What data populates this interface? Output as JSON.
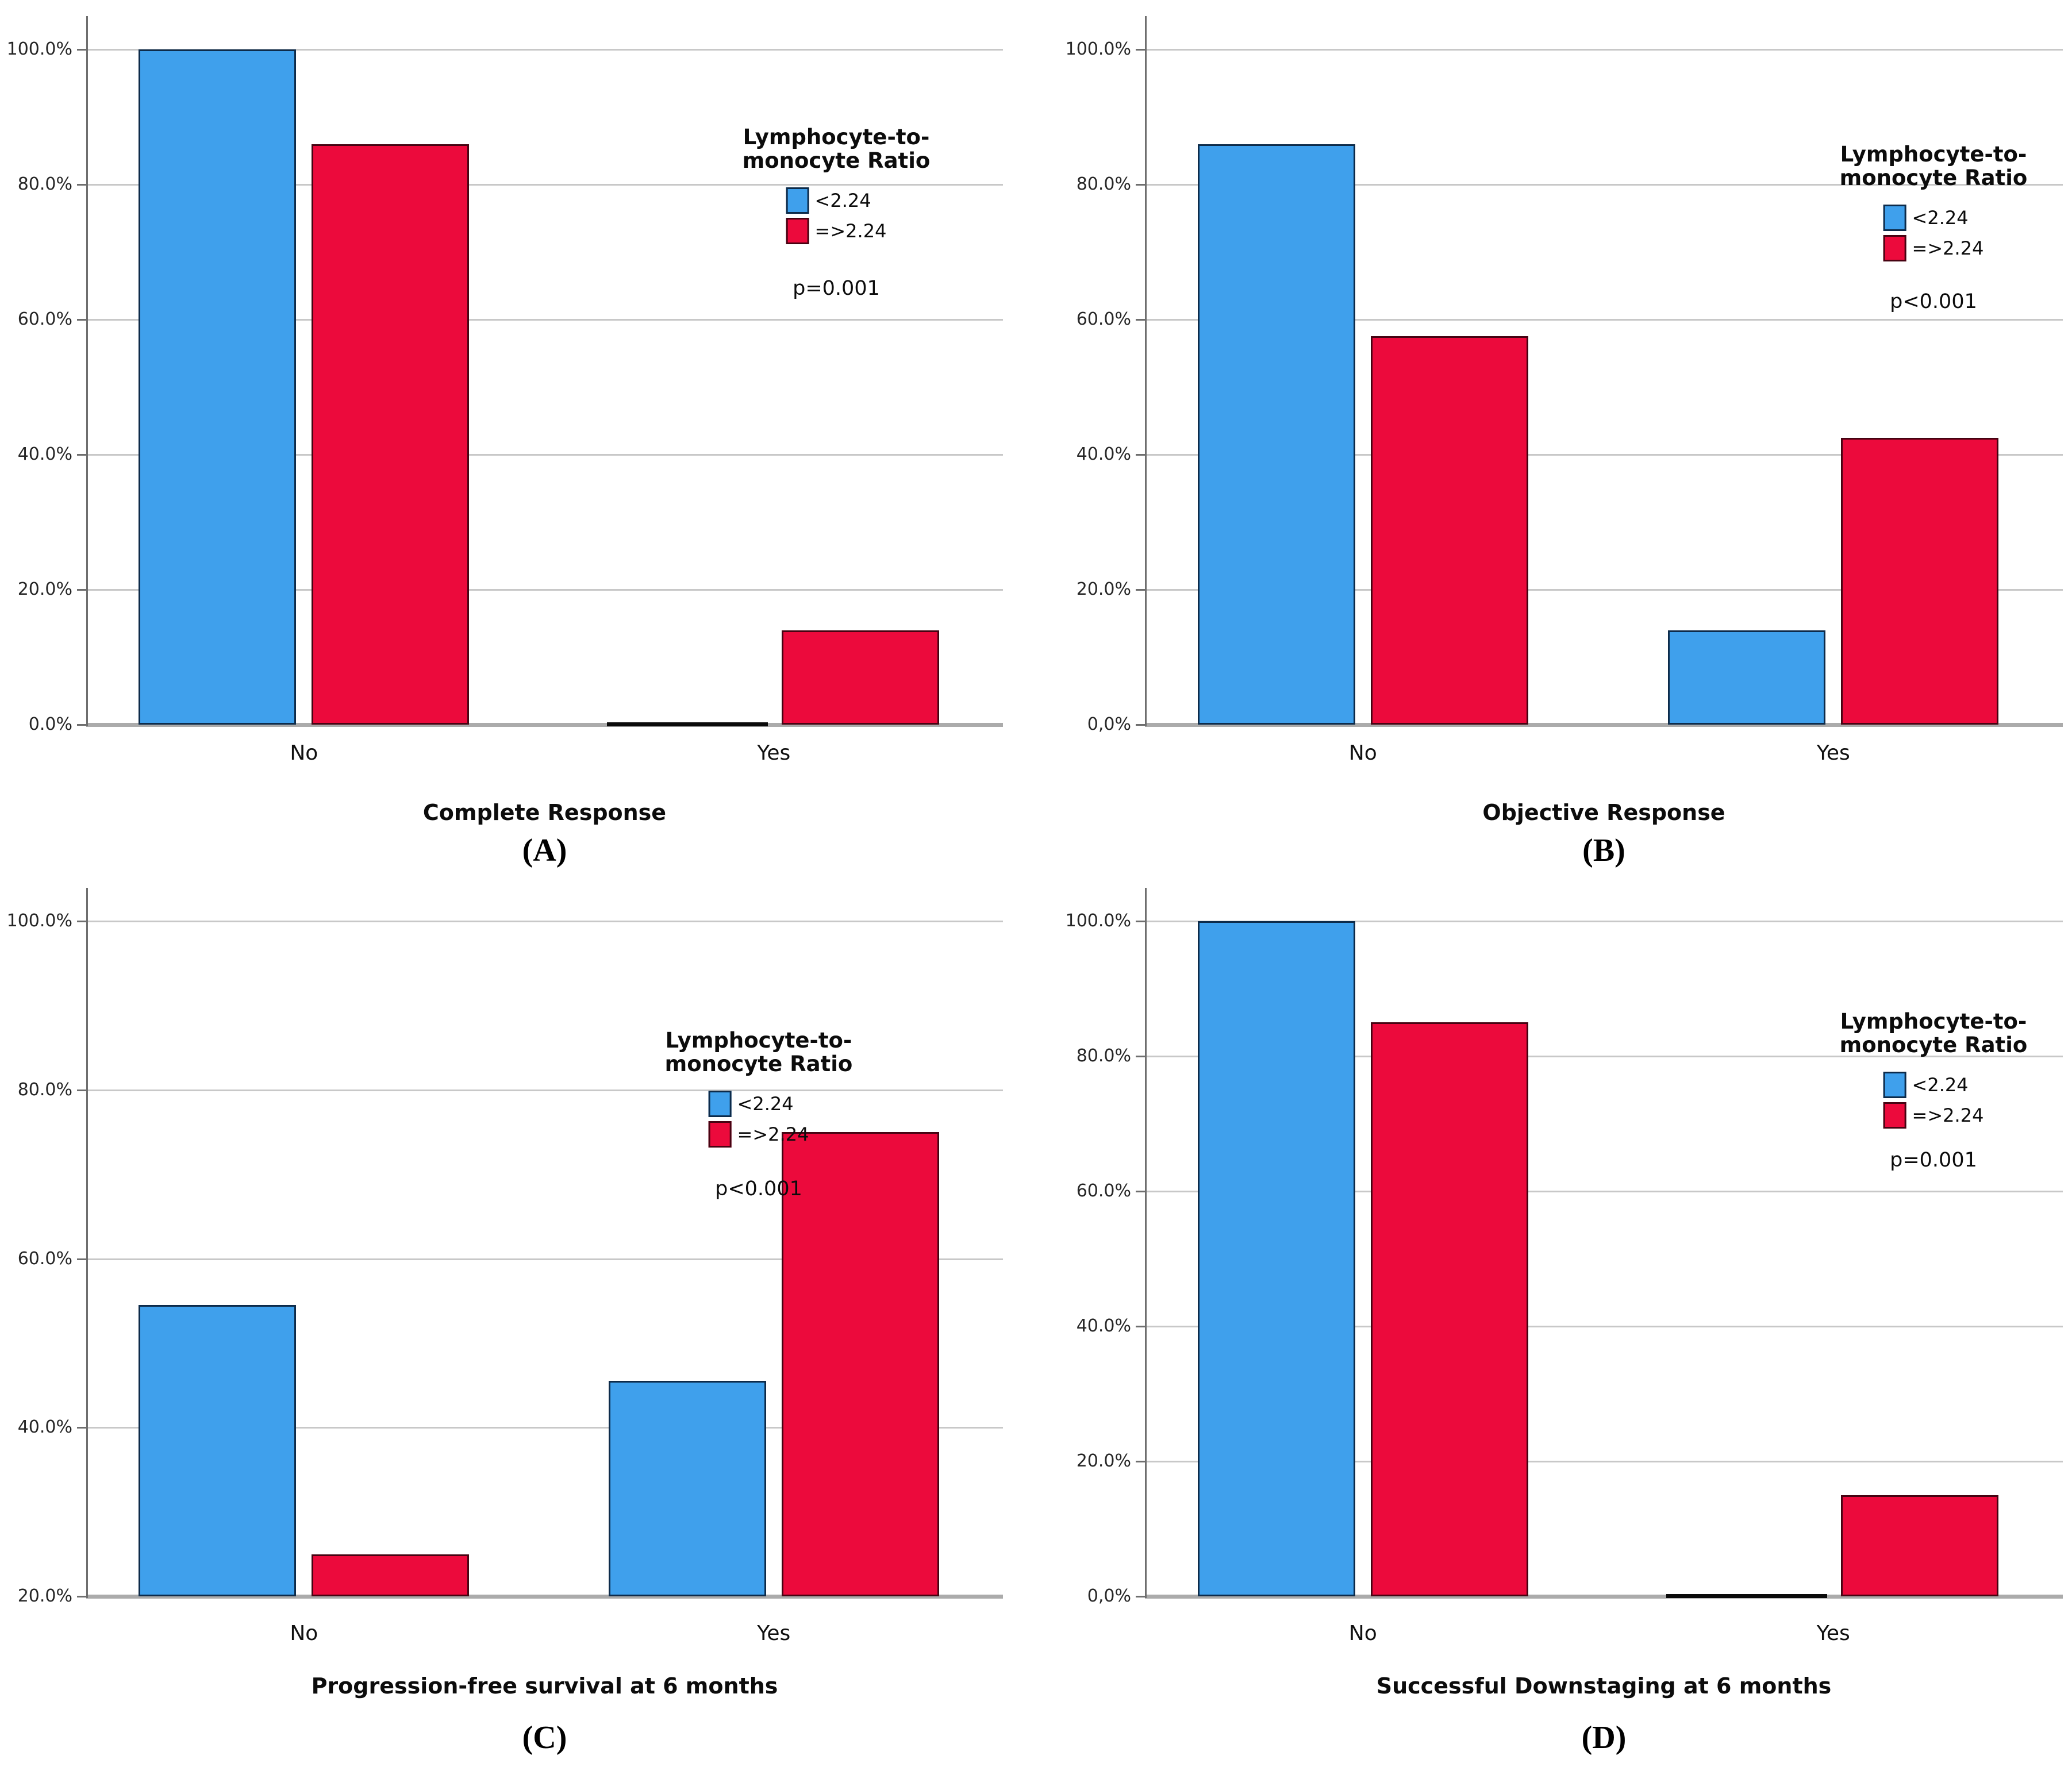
{
  "colors": {
    "bar_blue": "#3FA0EC",
    "bar_blue_border": "#0D2B4A",
    "bar_red": "#EC0A3C",
    "bar_red_border": "#460312",
    "gridline": "#C8C8C8",
    "baseline": "#ABABAB",
    "axis_line": "#6E6E6E",
    "zero_bar": "#0A0A0A",
    "text": "#1A1A1A"
  },
  "legend": {
    "title_lines": [
      "Lymphocyte-to-",
      "monocyte Ratio"
    ],
    "items": [
      {
        "label": "<2.24",
        "color": "#3FA0EC",
        "border": "#0D2B4A"
      },
      {
        "label": "=>2.24",
        "color": "#EC0A3C",
        "border": "#460312"
      }
    ]
  },
  "chart_data": [
    {
      "type": "bar",
      "panel_letter": "(A)",
      "xlabel": "Complete Response",
      "categories": [
        "No",
        "Yes"
      ],
      "series": [
        {
          "name": "<2.24",
          "color": "#3FA0EC",
          "border": "#0D2B4A",
          "values": [
            100.0,
            0.0
          ]
        },
        {
          "name": "=>2.24",
          "color": "#EC0A3C",
          "border": "#460312",
          "values": [
            86.0,
            14.0
          ]
        }
      ],
      "p_label": "p=0.001",
      "ylim": [
        0,
        100
      ],
      "yticks": [
        0,
        20,
        40,
        60,
        80,
        100
      ],
      "ytick_labels": [
        "0.0%",
        "20.0%",
        "40.0%",
        "60.0%",
        "80.0%",
        "100.0%"
      ],
      "grid": true,
      "legend_position": "inside-right"
    },
    {
      "type": "bar",
      "panel_letter": "(B)",
      "xlabel": "Objective Response",
      "categories": [
        "No",
        "Yes"
      ],
      "series": [
        {
          "name": "<2.24",
          "color": "#3FA0EC",
          "border": "#0D2B4A",
          "values": [
            86.0,
            14.0
          ]
        },
        {
          "name": "=>2.24",
          "color": "#EC0A3C",
          "border": "#460312",
          "values": [
            57.5,
            42.5
          ]
        }
      ],
      "p_label": "p<0.001",
      "ylim": [
        0,
        100
      ],
      "yticks": [
        0,
        20,
        40,
        60,
        80,
        100
      ],
      "ytick_labels": [
        "0,0%",
        "20.0%",
        "40.0%",
        "60.0%",
        "80.0%",
        "100.0%"
      ],
      "grid": true,
      "legend_position": "inside-right"
    },
    {
      "type": "bar",
      "panel_letter": "(C)",
      "xlabel": "Progression-free survival at 6 months",
      "categories": [
        "No",
        "Yes"
      ],
      "series": [
        {
          "name": "<2.24",
          "color": "#3FA0EC",
          "border": "#0D2B4A",
          "values": [
            54.5,
            45.5
          ]
        },
        {
          "name": "=>2.24",
          "color": "#EC0A3C",
          "border": "#460312",
          "values": [
            25.0,
            75.0
          ]
        }
      ],
      "p_label": "p<0.001",
      "ylim": [
        20,
        100
      ],
      "yticks": [
        20,
        40,
        60,
        80,
        100
      ],
      "ytick_labels": [
        "20.0%",
        "40.0%",
        "60.0%",
        "80.0%",
        "100.0%"
      ],
      "grid": true,
      "legend_position": "inside-center"
    },
    {
      "type": "bar",
      "panel_letter": "(D)",
      "xlabel": "Successful Downstaging at 6 months",
      "categories": [
        "No",
        "Yes"
      ],
      "series": [
        {
          "name": "<2.24",
          "color": "#3FA0EC",
          "border": "#0D2B4A",
          "values": [
            100.0,
            0.0
          ]
        },
        {
          "name": "=>2.24",
          "color": "#EC0A3C",
          "border": "#460312",
          "values": [
            85.0,
            15.0
          ]
        }
      ],
      "p_label": "p=0.001",
      "ylim": [
        0,
        100
      ],
      "yticks": [
        0,
        20,
        40,
        60,
        80,
        100
      ],
      "ytick_labels": [
        "0,0%",
        "20.0%",
        "40.0%",
        "60.0%",
        "80.0%",
        "100.0%"
      ],
      "grid": true,
      "legend_position": "inside-right"
    }
  ]
}
